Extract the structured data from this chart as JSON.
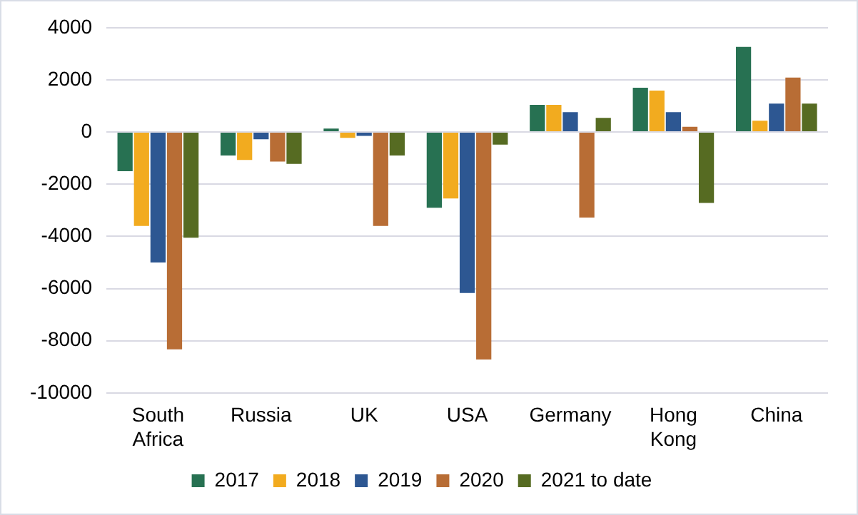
{
  "chart_data": {
    "type": "bar",
    "categories": [
      "South Africa",
      "Russia",
      "UK",
      "USA",
      "Germany",
      "Hong Kong",
      "China"
    ],
    "series": [
      {
        "name": "2017",
        "color": "#277152",
        "values": [
          -1500,
          -900,
          130,
          -2900,
          1040,
          1700,
          3260
        ]
      },
      {
        "name": "2018",
        "color": "#f2ab1f",
        "values": [
          -3600,
          -1070,
          -220,
          -2550,
          1040,
          1590,
          430
        ]
      },
      {
        "name": "2019",
        "color": "#2d5792",
        "values": [
          -5000,
          -280,
          -150,
          -6170,
          760,
          760,
          1090
        ]
      },
      {
        "name": "2020",
        "color": "#b86d35",
        "values": [
          -8330,
          -1130,
          -3600,
          -8720,
          -3280,
          200,
          2090
        ]
      },
      {
        "name": "2021 to date",
        "color": "#566b22",
        "values": [
          -4050,
          -1220,
          -900,
          -480,
          540,
          -2720,
          1090
        ]
      }
    ],
    "ylim": [
      -10000,
      4000
    ],
    "yticks": [
      -10000,
      -8000,
      -6000,
      -4000,
      -2000,
      0,
      2000,
      4000
    ],
    "grid": "y",
    "legend": "bottom"
  }
}
